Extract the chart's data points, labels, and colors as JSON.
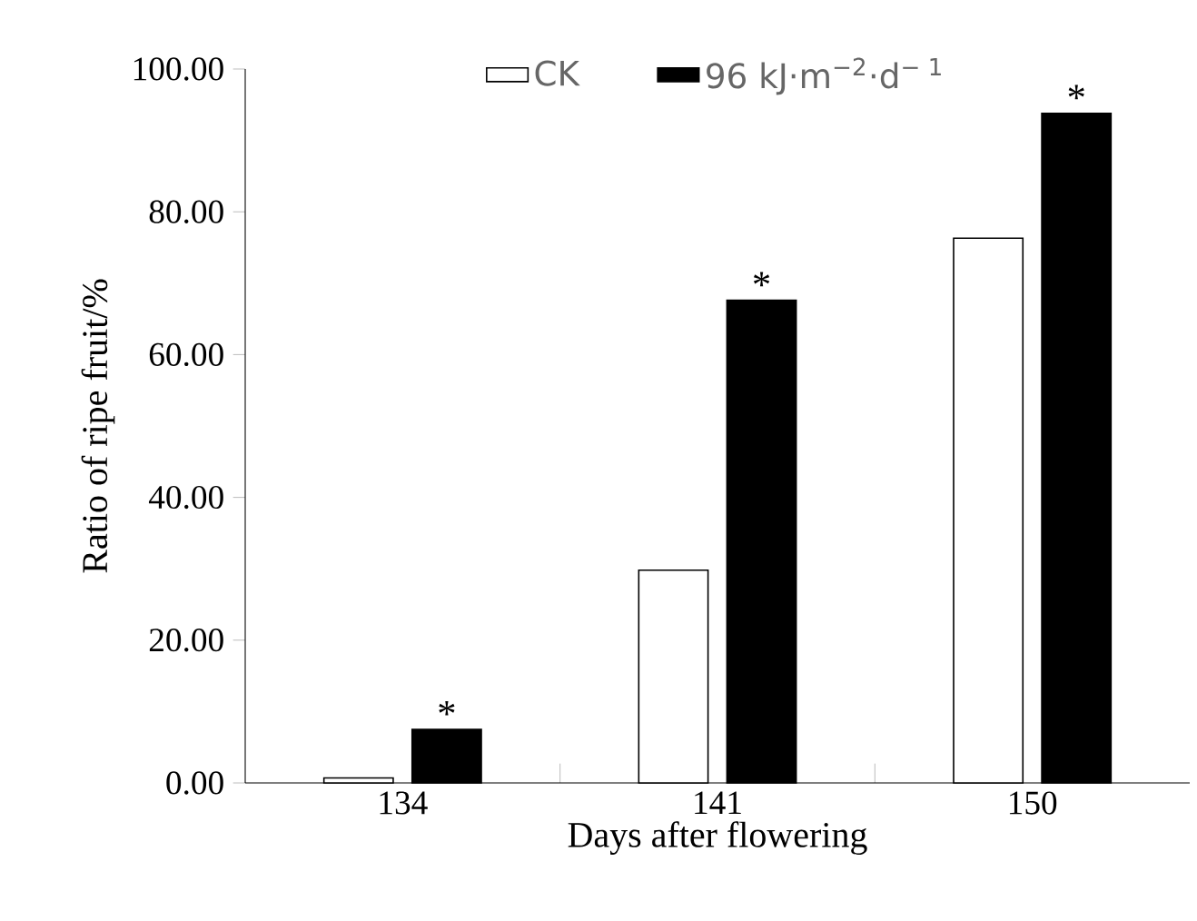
{
  "chart_data": {
    "type": "bar",
    "xlabel": "Days after flowering",
    "ylabel": "Ratio of ripe fruit/%",
    "categories": [
      "134",
      "141",
      "150"
    ],
    "series": [
      {
        "name": "CK",
        "color": "#ffffff",
        "values": [
          0.7,
          29.8,
          76.3
        ]
      },
      {
        "name": "96 kJ·m$^{−2}$·d$^{− 1}$",
        "color": "#000000",
        "values": [
          7.5,
          67.6,
          93.8
        ]
      }
    ],
    "ylim": [
      0,
      100
    ],
    "yticks": [
      {
        "value": 0,
        "label": "0.00"
      },
      {
        "value": 20,
        "label": "20.00"
      },
      {
        "value": 40,
        "label": "40.00"
      },
      {
        "value": 60,
        "label": "60.00"
      },
      {
        "value": 80,
        "label": "80.00"
      },
      {
        "value": 100,
        "label": "100.00"
      }
    ],
    "annotations": [
      {
        "text": "*",
        "x": "134",
        "y": 7.5
      },
      {
        "text": "*",
        "x": "141",
        "y": 67.6
      },
      {
        "text": "*",
        "x": "150",
        "y": 93.8
      }
    ],
    "legend": "top",
    "grid": false
  }
}
